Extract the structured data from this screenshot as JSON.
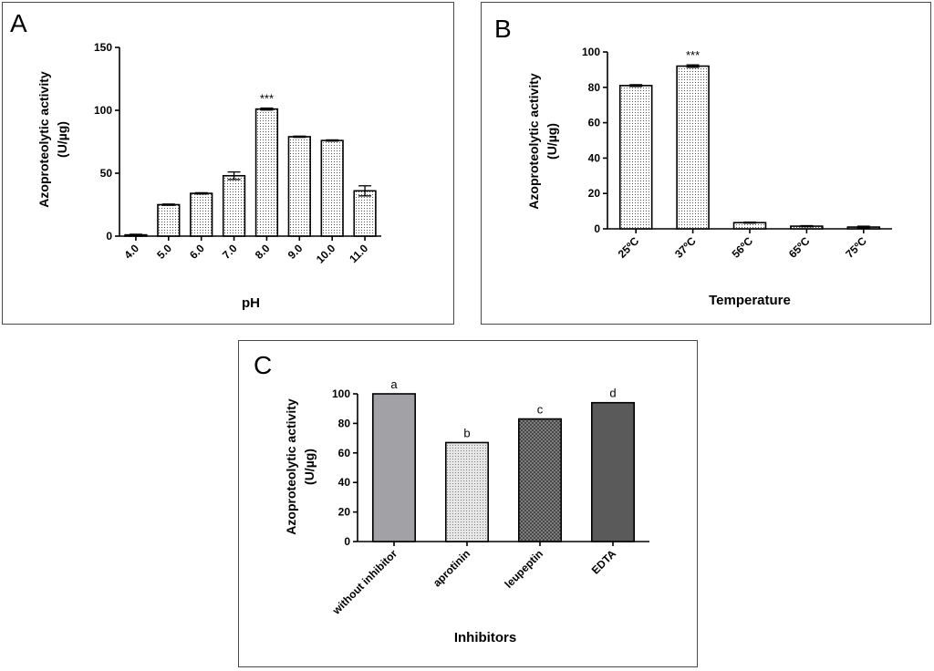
{
  "chart_data": [
    {
      "panel_label": "A",
      "type": "bar",
      "ylabel_lines": [
        "Azoproteolytic activity",
        "(U/µg)"
      ],
      "xlabel": "pH",
      "categories": [
        "4.0",
        "5.0",
        "6.0",
        "7.0",
        "8.0",
        "9.0",
        "10.0",
        "11.0"
      ],
      "values": [
        1,
        25,
        34,
        48,
        101,
        79,
        76,
        36
      ],
      "errors": [
        0.5,
        0.5,
        0.5,
        3,
        0.8,
        0.5,
        0.5,
        4
      ],
      "annotations": [
        "",
        "",
        "",
        "",
        "***",
        "",
        "",
        ""
      ],
      "ylim": [
        0,
        150
      ],
      "yticks": [
        0,
        50,
        100,
        150
      ],
      "grid": false
    },
    {
      "panel_label": "B",
      "type": "bar",
      "ylabel_lines": [
        "Azoproteolytic activity",
        "(U/µg)"
      ],
      "xlabel": "Temperature",
      "categories": [
        "25ºC",
        "37ºC",
        "56ºC",
        "65ºC",
        "75ºC"
      ],
      "values": [
        81,
        92,
        3.5,
        1.5,
        1
      ],
      "errors": [
        0.5,
        0.7,
        0.3,
        0.3,
        0.5
      ],
      "annotations": [
        "",
        "***",
        "",
        "",
        ""
      ],
      "ylim": [
        0,
        100
      ],
      "yticks": [
        0,
        20,
        40,
        60,
        80,
        100
      ],
      "grid": false
    },
    {
      "panel_label": "C",
      "type": "bar",
      "ylabel_lines": [
        "Azoproteolytic activity",
        "(U/µg)"
      ],
      "xlabel": "Inhibitors",
      "categories": [
        "without inhibitor",
        "aprotinin",
        "leupeptin",
        "EDTA"
      ],
      "values": [
        100,
        67,
        83,
        94
      ],
      "annotations": [
        "a",
        "b",
        "c",
        "d"
      ],
      "ylim": [
        0,
        100
      ],
      "yticks": [
        0,
        20,
        40,
        60,
        80,
        100
      ],
      "grid": false
    }
  ],
  "colors": {
    "axis": "#000000",
    "dots": "#555555",
    "bar_inhib_a": "#a2a2a6",
    "bar_inhib_d": "#5a5a5a"
  }
}
